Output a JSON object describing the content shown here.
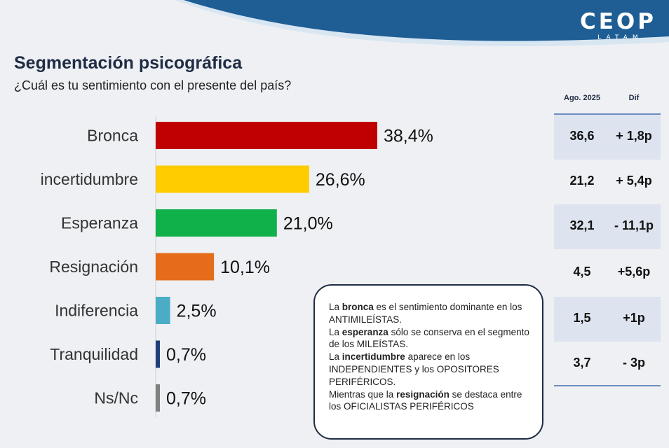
{
  "header": {
    "logo_main": "CEOP",
    "logo_sub": "LATAM"
  },
  "title": "Segmentación psicográfica",
  "subtitle": "¿Cuál es tu sentimiento con el presente del país?",
  "chart_data": {
    "type": "bar",
    "orientation": "horizontal",
    "categories": [
      "Bronca",
      "incertidumbre",
      "Esperanza",
      "Resignación",
      "Indiferencia",
      "Tranquilidad",
      "Ns/Nc"
    ],
    "values": [
      38.4,
      26.6,
      21.0,
      10.1,
      2.5,
      0.7,
      0.7
    ],
    "value_labels": [
      "38,4%",
      "26,6%",
      "21,0%",
      "10,1%",
      "2,5%",
      "0,7%",
      "0,7%"
    ],
    "colors": [
      "#c00000",
      "#ffcc00",
      "#10b04a",
      "#e46c1a",
      "#4bacc6",
      "#1f3f7a",
      "#808080"
    ],
    "xlim": [
      0,
      38.4
    ],
    "grid": false,
    "legend": "none",
    "title": "",
    "xlabel": "",
    "ylabel": ""
  },
  "comparison": {
    "headers": [
      "Ago. 2025",
      "Dif"
    ],
    "rows": [
      {
        "value": "36,6",
        "dif": "+ 1,8p"
      },
      {
        "value": "21,2",
        "dif": "+ 5,4p"
      },
      {
        "value": "32,1",
        "dif": "- 11,1p"
      },
      {
        "value": "4,5",
        "dif": "+5,6p"
      },
      {
        "value": "1,5",
        "dif": "+1p"
      },
      {
        "value": "3,7",
        "dif": "- 3p"
      }
    ]
  },
  "note": {
    "p1_a": "La ",
    "p1_b": "bronca",
    "p1_c": " es el sentimiento dominante en los ANTIMILEÍSTAS.",
    "p2_a": "La ",
    "p2_b": "esperanza",
    "p2_c": " sólo se conserva en el segmento de los MILEÍSTAS.",
    "p3_a": "La ",
    "p3_b": "incertidumbre",
    "p3_c": " aparece en los INDEPENDIENTES y los OPOSITORES PERIFÉRICOS.",
    "p4_a": "Mientras que la ",
    "p4_b": "resignación",
    "p4_c": " se destaca entre los OFICIALISTAS PERIFÉRICOS"
  },
  "colors": {
    "wave": "#1e5e94",
    "wave_light": "#d8e6f2",
    "title": "#1f2c44",
    "table_shade": "#dde4ef",
    "table_line": "#6b8cc0"
  }
}
